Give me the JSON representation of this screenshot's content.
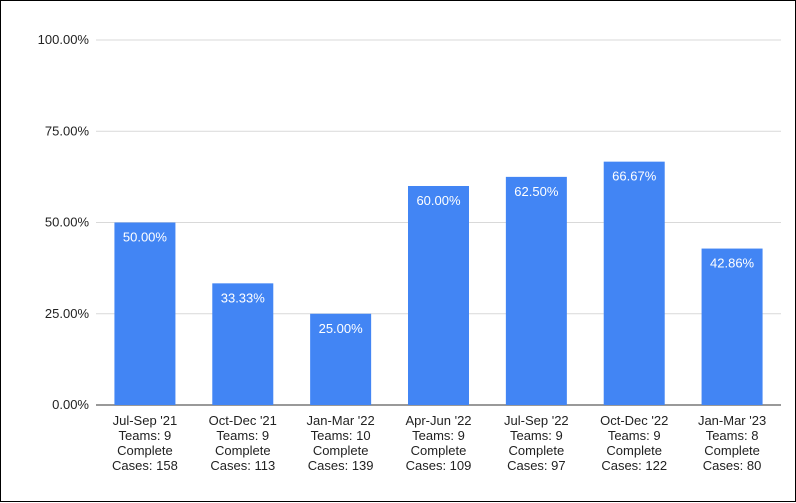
{
  "chart_data": {
    "type": "bar",
    "title": "",
    "xlabel": "",
    "ylabel": "",
    "ylim": [
      0,
      100
    ],
    "yticks": [
      "0.00%",
      "25.00%",
      "50.00%",
      "75.00%",
      "100.00%"
    ],
    "ytick_values": [
      0,
      25,
      50,
      75,
      100
    ],
    "grid": true,
    "bar_color": "#4285f4",
    "categories": [
      [
        "Jul-Sep '21",
        "Teams: 9",
        "Complete",
        "Cases: 158"
      ],
      [
        "Oct-Dec '21",
        "Teams: 9",
        "Complete",
        "Cases: 113"
      ],
      [
        "Jan-Mar '22",
        "Teams: 10",
        "Complete",
        "Cases: 139"
      ],
      [
        "Apr-Jun '22",
        "Teams: 9",
        "Complete",
        "Cases: 109"
      ],
      [
        "Jul-Sep '22",
        "Teams: 9",
        "Complete",
        "Cases: 97"
      ],
      [
        "Oct-Dec '22",
        "Teams: 9",
        "Complete",
        "Cases: 122"
      ],
      [
        "Jan-Mar '23",
        "Teams: 8",
        "Complete",
        "Cases: 80"
      ]
    ],
    "values": [
      50.0,
      33.33,
      25.0,
      60.0,
      62.5,
      66.67,
      42.86
    ],
    "data_labels": [
      "50.00%",
      "33.33%",
      "25.00%",
      "60.00%",
      "62.50%",
      "66.67%",
      "42.86%"
    ]
  }
}
